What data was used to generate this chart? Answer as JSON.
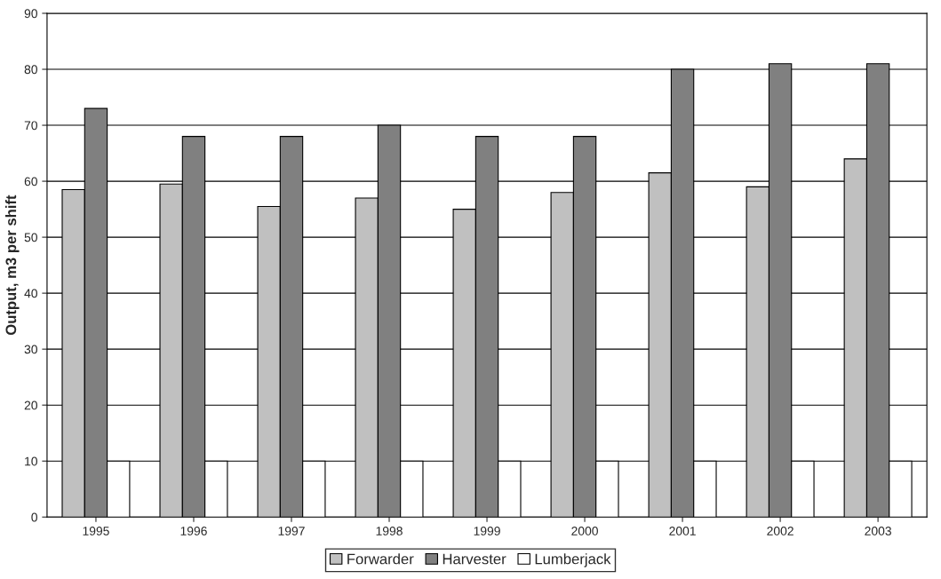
{
  "chart_data": {
    "type": "bar",
    "ylabel": "Output, m3 per shift",
    "categories": [
      "1995",
      "1996",
      "1997",
      "1998",
      "1999",
      "2000",
      "2001",
      "2002",
      "2003"
    ],
    "series": [
      {
        "name": "Forwarder",
        "color": "#c0c0c0",
        "values": [
          58.5,
          59.5,
          55.5,
          57,
          55,
          58,
          61.5,
          59,
          64
        ]
      },
      {
        "name": "Harvester",
        "color": "#808080",
        "values": [
          73,
          68,
          68,
          70,
          68,
          68,
          80,
          81,
          81
        ]
      },
      {
        "name": "Lumberjack",
        "color": "#ffffff",
        "values": [
          10,
          10,
          10,
          10,
          10,
          10,
          10,
          10,
          10
        ]
      }
    ],
    "ylim": [
      0,
      90
    ],
    "yticks": [
      0,
      10,
      20,
      30,
      40,
      50,
      60,
      70,
      80,
      90
    ],
    "grid": "y",
    "legend": "bottom"
  }
}
